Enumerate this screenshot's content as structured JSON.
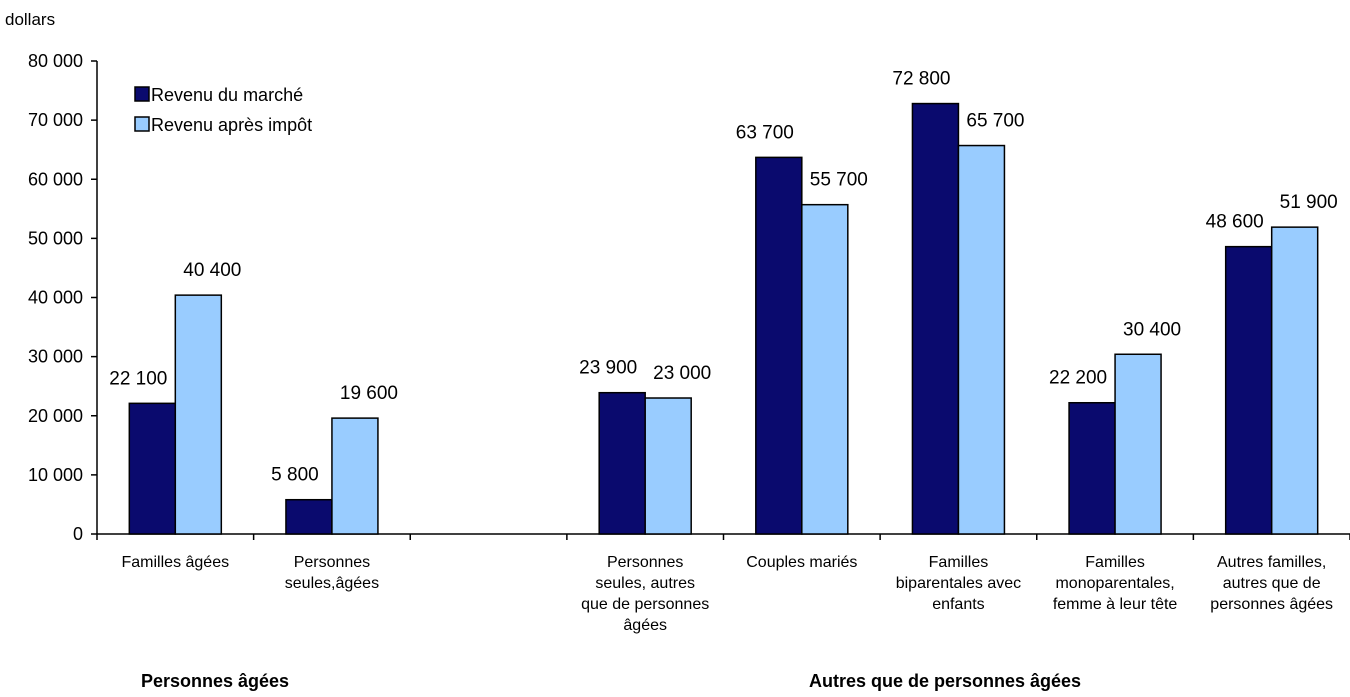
{
  "chart_data": {
    "type": "bar",
    "ylabel": "dollars",
    "ylim": [
      0,
      80000
    ],
    "yticks": [
      0,
      10000,
      20000,
      30000,
      40000,
      50000,
      60000,
      70000,
      80000
    ],
    "ytick_labels": [
      "0",
      "10 000",
      "20 000",
      "30 000",
      "40 000",
      "50 000",
      "60 000",
      "70 000",
      "80 000"
    ],
    "grid": false,
    "legend_position": "top-left",
    "categories": [
      {
        "label": [
          "Familles âgées"
        ]
      },
      {
        "label": [
          "Personnes",
          "seules,âgées"
        ]
      },
      {
        "label": []
      },
      {
        "label": [
          "Personnes",
          "seules, autres",
          "que de personnes",
          "âgées"
        ]
      },
      {
        "label": [
          "Couples mariés"
        ]
      },
      {
        "label": [
          "Familles",
          "biparentales avec",
          "enfants"
        ]
      },
      {
        "label": [
          "Familles",
          "monoparentales,",
          "femme à leur tête"
        ]
      },
      {
        "label": [
          "Autres familles,",
          "autres que de",
          "personnes âgées"
        ]
      }
    ],
    "series": [
      {
        "name": "Revenu du marché",
        "color": "#0a0a6e",
        "values": [
          22100,
          5800,
          null,
          23900,
          63700,
          72800,
          22200,
          48600
        ],
        "labels": [
          "22 100",
          "5 800",
          "",
          "23 900",
          "63 700",
          "72 800",
          "22 200",
          "48 600"
        ]
      },
      {
        "name": "Revenu après impôt",
        "color": "#99ccff",
        "values": [
          40400,
          19600,
          null,
          23000,
          55700,
          65700,
          30400,
          51900
        ],
        "labels": [
          "40 400",
          "19 600",
          "",
          "23 000",
          "55 700",
          "65 700",
          "30 400",
          "51 900"
        ]
      }
    ],
    "groups": [
      {
        "label": "Personnes âgées"
      },
      {
        "label": "Autres que de personnes âgées"
      }
    ]
  }
}
